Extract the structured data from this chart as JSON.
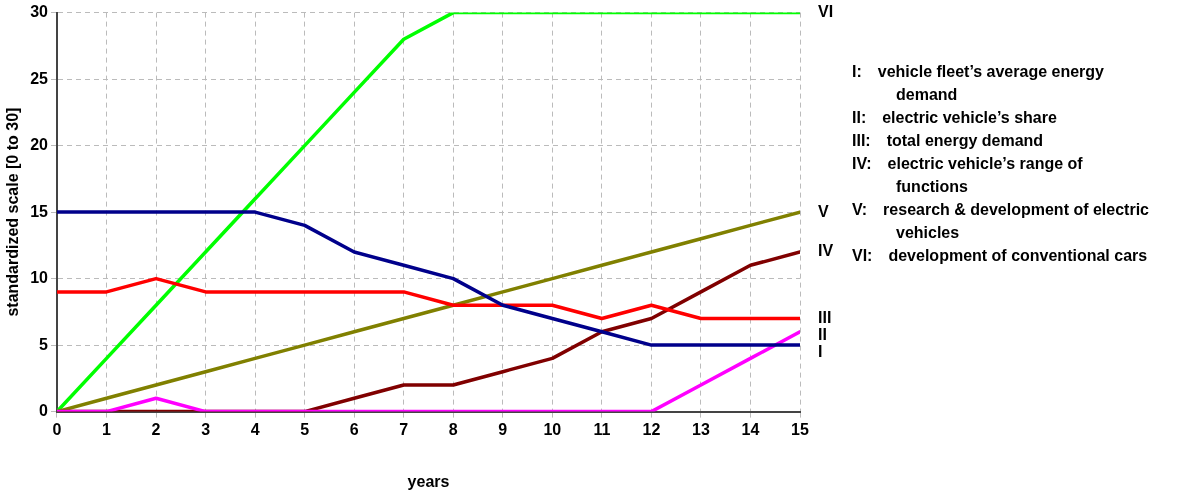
{
  "chart_data": {
    "type": "line",
    "xlabel": "years",
    "ylabel": "standardized scale [0 to 30]",
    "x": [
      0,
      1,
      2,
      3,
      4,
      5,
      6,
      7,
      8,
      9,
      10,
      11,
      12,
      13,
      14,
      15
    ],
    "xlim": [
      0,
      15
    ],
    "xticks": [
      0,
      1,
      2,
      3,
      4,
      5,
      6,
      7,
      8,
      9,
      10,
      11,
      12,
      13,
      14,
      15
    ],
    "ylim": [
      0,
      30
    ],
    "yticks": [
      0,
      5,
      10,
      15,
      20,
      25,
      30
    ],
    "grid": true,
    "legend": false,
    "marker": "none",
    "line_style": "solid",
    "series": [
      {
        "name": "I",
        "color": "#00008b",
        "values": [
          15,
          15,
          15,
          15,
          15,
          14,
          12,
          11,
          10,
          8,
          7,
          6,
          5,
          5,
          5,
          5
        ]
      },
      {
        "name": "II",
        "color": "#ff00ff",
        "values": [
          0,
          0,
          1,
          0,
          0,
          0,
          0,
          0,
          0,
          0,
          0,
          0,
          0,
          2,
          4,
          6
        ]
      },
      {
        "name": "III",
        "color": "#ff0000",
        "values": [
          9,
          9,
          10,
          9,
          9,
          9,
          9,
          9,
          8,
          8,
          8,
          7,
          8,
          7,
          7,
          7
        ]
      },
      {
        "name": "IV",
        "color": "#800000",
        "values": [
          0,
          0,
          0,
          0,
          0,
          0,
          1,
          2,
          2,
          3,
          4,
          6,
          7,
          9,
          11,
          12
        ]
      },
      {
        "name": "V",
        "color": "#808000",
        "values": [
          0,
          1,
          2,
          3,
          4,
          5,
          6,
          7,
          8,
          9,
          10,
          11,
          12,
          13,
          14,
          15
        ]
      },
      {
        "name": "VI",
        "color": "#00ff00",
        "values": [
          0,
          4,
          8,
          12,
          16,
          20,
          24,
          28,
          30,
          30,
          30,
          30,
          30,
          30,
          30,
          30
        ]
      }
    ],
    "annotations": [
      "I: vehicle fleet’s average energy demand",
      "II: electric vehicle’s share",
      "III: total energy demand",
      "IV: electric vehicle’s range of functions",
      "V: research & development of electric vehicles",
      "VI: development of conventional cars"
    ]
  }
}
